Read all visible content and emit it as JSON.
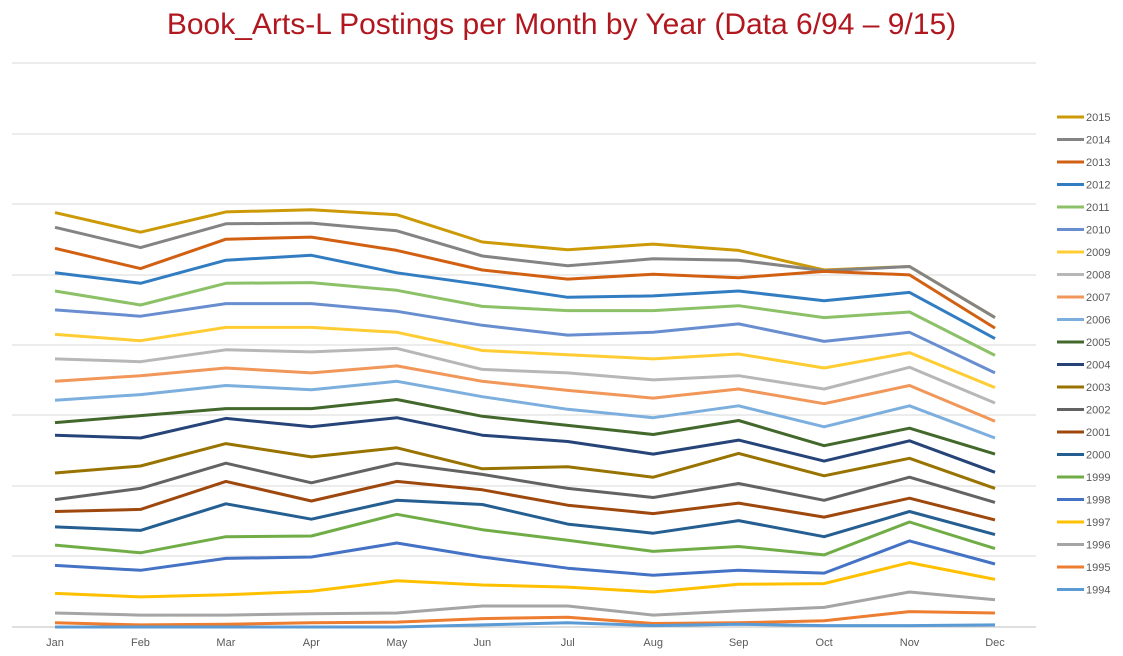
{
  "chart_data": {
    "type": "line",
    "title": "Book_Arts-L Postings per Month by Year (Data 6/94 –  9/15)",
    "xlabel": "",
    "ylabel": "",
    "stacked": true,
    "grid": true,
    "legend_position": "right",
    "categories": [
      "Jan",
      "Feb",
      "Mar",
      "Apr",
      "May",
      "Jun",
      "Jul",
      "Aug",
      "Sep",
      "Oct",
      "Nov",
      "Dec"
    ],
    "series": [
      {
        "name": "1994",
        "color": "#5b9bd5",
        "values": [
          0,
          0,
          0,
          0,
          0,
          3,
          6,
          2,
          4,
          2,
          2,
          3
        ]
      },
      {
        "name": "1995",
        "color": "#ed7d31",
        "values": [
          6,
          3,
          4,
          6,
          7,
          9,
          8,
          3,
          2,
          7,
          20,
          17
        ]
      },
      {
        "name": "1996",
        "color": "#a5a5a5",
        "values": [
          14,
          14,
          13,
          13,
          13,
          18,
          16,
          12,
          17,
          19,
          28,
          19
        ]
      },
      {
        "name": "1997",
        "color": "#ffc000",
        "values": [
          28,
          26,
          29,
          32,
          46,
          30,
          27,
          33,
          38,
          34,
          42,
          29
        ]
      },
      {
        "name": "1998",
        "color": "#4472c4",
        "values": [
          40,
          38,
          52,
          49,
          54,
          40,
          27,
          24,
          20,
          15,
          31,
          22
        ]
      },
      {
        "name": "1999",
        "color": "#70ad47",
        "values": [
          29,
          25,
          31,
          30,
          41,
          39,
          40,
          34,
          34,
          26,
          27,
          22
        ]
      },
      {
        "name": "2000",
        "color": "#255e91",
        "values": [
          26,
          32,
          47,
          24,
          20,
          36,
          23,
          26,
          37,
          26,
          15,
          20
        ]
      },
      {
        "name": "2001",
        "color": "#9e480e",
        "values": [
          22,
          30,
          32,
          26,
          27,
          21,
          27,
          28,
          25,
          28,
          19,
          21
        ]
      },
      {
        "name": "2002",
        "color": "#636363",
        "values": [
          17,
          30,
          26,
          26,
          26,
          22,
          24,
          23,
          28,
          24,
          30,
          25
        ]
      },
      {
        "name": "2003",
        "color": "#997300",
        "values": [
          38,
          32,
          28,
          37,
          22,
          8,
          31,
          29,
          43,
          35,
          27,
          20
        ]
      },
      {
        "name": "2004",
        "color": "#264478",
        "values": [
          54,
          40,
          36,
          43,
          43,
          48,
          36,
          33,
          19,
          21,
          25,
          23
        ]
      },
      {
        "name": "2005",
        "color": "#43682b",
        "values": [
          18,
          32,
          14,
          26,
          26,
          27,
          23,
          28,
          28,
          22,
          18,
          26
        ]
      },
      {
        "name": "2006",
        "color": "#7cafdd",
        "values": [
          32,
          30,
          33,
          27,
          26,
          28,
          23,
          24,
          21,
          27,
          32,
          23
        ]
      },
      {
        "name": "2007",
        "color": "#f1975a",
        "values": [
          27,
          27,
          25,
          24,
          22,
          22,
          27,
          28,
          24,
          33,
          29,
          24
        ]
      },
      {
        "name": "2008",
        "color": "#b7b7b7",
        "values": [
          32,
          20,
          26,
          30,
          25,
          17,
          25,
          26,
          19,
          21,
          26,
          26
        ]
      },
      {
        "name": "2009",
        "color": "#ffcd33",
        "values": [
          35,
          30,
          32,
          35,
          23,
          27,
          26,
          30,
          31,
          30,
          21,
          22
        ]
      },
      {
        "name": "2010",
        "color": "#698ed0",
        "values": [
          35,
          35,
          34,
          34,
          30,
          36,
          28,
          38,
          43,
          38,
          29,
          21
        ]
      },
      {
        "name": "2011",
        "color": "#8cc168",
        "values": [
          27,
          16,
          29,
          30,
          30,
          27,
          35,
          31,
          26,
          34,
          29,
          25
        ]
      },
      {
        "name": "2012",
        "color": "#327dc2",
        "values": [
          26,
          31,
          33,
          39,
          25,
          31,
          19,
          21,
          21,
          24,
          28,
          24
        ]
      },
      {
        "name": "2013",
        "color": "#d26012",
        "values": [
          35,
          21,
          30,
          26,
          32,
          21,
          26,
          31,
          19,
          42,
          25,
          15
        ]
      },
      {
        "name": "2014",
        "color": "#848484",
        "values": [
          30,
          30,
          22,
          20,
          28,
          20,
          19,
          22,
          25,
          1,
          12,
          15
        ]
      },
      {
        "name": "2015",
        "color": "#cc9a06",
        "values": [
          21,
          22,
          17,
          19,
          23,
          20,
          23,
          21,
          14,
          1,
          0,
          0
        ]
      }
    ]
  }
}
